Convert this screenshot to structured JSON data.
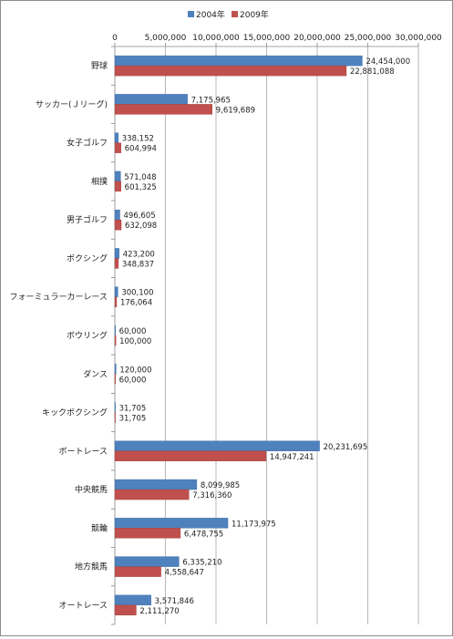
{
  "chart_data": {
    "type": "bar",
    "orientation": "horizontal",
    "title": "",
    "xlabel": "",
    "ylabel": "",
    "xlim": [
      0,
      30000000
    ],
    "x_ticks": [
      "0",
      "5,000,000",
      "10,000,000",
      "15,000,000",
      "20,000,000",
      "25,000,000",
      "30,000,000"
    ],
    "x_tick_values": [
      0,
      5000000,
      10000000,
      15000000,
      20000000,
      25000000,
      30000000
    ],
    "grid": true,
    "legend_position": "top",
    "categories": [
      "野球",
      "サッカー(Ｊリーグ)",
      "女子ゴルフ",
      "相撲",
      "男子ゴルフ",
      "ボクシング",
      "フォーミュラーカーレース",
      "ボウリング",
      "ダンス",
      "キックボクシング",
      "ボートレース",
      "中央競馬",
      "競輪",
      "地方競馬",
      "オートレース"
    ],
    "series": [
      {
        "name": "2004年",
        "color": "#4F81BD",
        "values": [
          24454000,
          7175965,
          338152,
          571048,
          496605,
          423200,
          300100,
          60000,
          120000,
          31705,
          20231695,
          8099985,
          11173975,
          6335210,
          3571846
        ],
        "labels": [
          "24,454,000",
          "7,175,965",
          "338,152",
          "571,048",
          "496,605",
          "423,200",
          "300,100",
          "60,000",
          "120,000",
          "31,705",
          "20,231,695",
          "8,099,985",
          "11,173,975",
          "6,335,210",
          "3,571,846"
        ]
      },
      {
        "name": "2009年",
        "color": "#C0504D",
        "values": [
          22881088,
          9619689,
          604994,
          601325,
          632098,
          348837,
          176064,
          100000,
          60000,
          31705,
          14947241,
          7316360,
          6478755,
          4558647,
          2111270
        ],
        "labels": [
          "22,881,088",
          "9,619,689",
          "604,994",
          "601,325",
          "632,098",
          "348,837",
          "176,064",
          "100,000",
          "60,000",
          "31,705",
          "14,947,241",
          "7,316,360",
          "6,478,755",
          "4,558,647",
          "2,111,270"
        ]
      }
    ]
  }
}
